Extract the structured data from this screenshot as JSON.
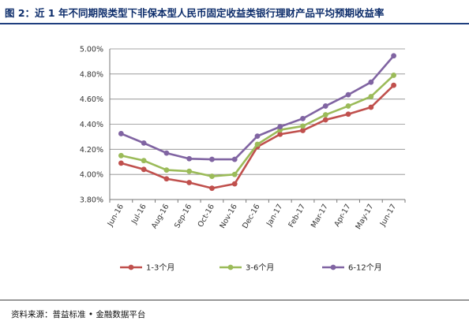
{
  "figure_title": "图 2：近 1 年不同期限类型下非保本型人民币固定收益类银行理财产品平均预期收益率",
  "source_note": "资料来源：普益标准 • 金融数据平台",
  "chart_data": {
    "type": "line",
    "title": "",
    "xlabel": "",
    "ylabel": "",
    "categories": [
      "Jun-16",
      "Jul-16",
      "Aug-16",
      "Sep-16",
      "Oct-16",
      "Nov-16",
      "Dec-16",
      "Jan-17",
      "Feb-17",
      "Mar-17",
      "Apr-17",
      "May-17",
      "Jun-17"
    ],
    "ylim": [
      3.8,
      5.0
    ],
    "yticks": [
      3.8,
      4.0,
      4.2,
      4.4,
      4.6,
      4.8,
      5.0
    ],
    "ytick_labels": [
      "3.80%",
      "4.00%",
      "4.20%",
      "4.40%",
      "4.60%",
      "4.80%",
      "5.00%"
    ],
    "grid": "horizontal",
    "legend_position": "bottom",
    "series": [
      {
        "name": "1-3个月",
        "color": "#c0504d",
        "values": [
          4.09,
          4.04,
          3.965,
          3.935,
          3.89,
          3.925,
          4.22,
          4.32,
          4.35,
          4.435,
          4.48,
          4.535,
          4.71
        ]
      },
      {
        "name": "3-6个月",
        "color": "#9bbb59",
        "values": [
          4.15,
          4.11,
          4.035,
          4.025,
          3.985,
          4.0,
          4.24,
          4.355,
          4.385,
          4.475,
          4.545,
          4.62,
          4.79
        ]
      },
      {
        "name": "6-12个月",
        "color": "#8064a2",
        "values": [
          4.325,
          4.25,
          4.17,
          4.125,
          4.12,
          4.12,
          4.305,
          4.38,
          4.445,
          4.545,
          4.635,
          4.735,
          4.945
        ]
      }
    ]
  }
}
